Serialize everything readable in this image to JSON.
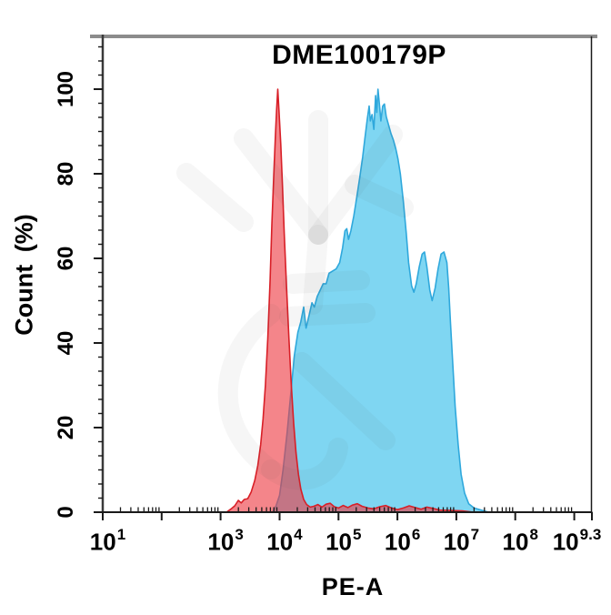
{
  "title": "DME100179P",
  "axes": {
    "y": {
      "label": "Count (%)",
      "ticks": [
        {
          "value": 0,
          "label": "0"
        },
        {
          "value": 20,
          "label": "20"
        },
        {
          "value": 40,
          "label": "40"
        },
        {
          "value": 60,
          "label": "60"
        },
        {
          "value": 80,
          "label": "80"
        },
        {
          "value": 100,
          "label": "100"
        }
      ],
      "minor_step": 3.3333,
      "max_shown": 113
    },
    "x": {
      "label": "PE-A",
      "scale": "log10",
      "range_log": [
        1,
        9.3
      ],
      "ticks": [
        {
          "log": 1,
          "base": "10",
          "exp": "1"
        },
        {
          "log": 3,
          "base": "10",
          "exp": "3"
        },
        {
          "log": 4,
          "base": "10",
          "exp": "4"
        },
        {
          "log": 5,
          "base": "10",
          "exp": "5"
        },
        {
          "log": 6,
          "base": "10",
          "exp": "6"
        },
        {
          "log": 7,
          "base": "10",
          "exp": "7"
        },
        {
          "log": 8,
          "base": "10",
          "exp": "8"
        },
        {
          "log": 9.3,
          "base": "10",
          "exp": "9.3"
        }
      ],
      "unlabeled_major_decades": [
        2,
        9
      ]
    }
  },
  "colors": {
    "red_fill": "#EE3A42",
    "red_fill_opacity": 0.62,
    "red_stroke": "#D81F27",
    "blue_fill": "#7FD6F2",
    "blue_stroke": "#2FA8DC",
    "axis": "#1A1A1A",
    "frame_top": "#8C8C8C",
    "watermark": "#4A4A4A",
    "watermark_opacity": 0.05
  },
  "chart_data": {
    "type": "area",
    "subtype": "flow-cytometry-histogram-overlay",
    "title": "DME100179P",
    "xlabel": "PE-A",
    "ylabel": "Count (%)",
    "x_scale": "log10",
    "xlim_log": [
      1,
      9.3
    ],
    "ylim": [
      0,
      113
    ],
    "grid": false,
    "legend": "none",
    "series": [
      {
        "name": "isotype-control-red",
        "peak_log10_x": 3.97,
        "peak_percent": 100,
        "points_log_pct": [
          [
            3.1,
            0
          ],
          [
            3.18,
            0.8
          ],
          [
            3.24,
            1.5
          ],
          [
            3.3,
            2.8
          ],
          [
            3.35,
            2.2
          ],
          [
            3.4,
            3.0
          ],
          [
            3.46,
            3.2
          ],
          [
            3.52,
            4.8
          ],
          [
            3.58,
            7.5
          ],
          [
            3.63,
            11
          ],
          [
            3.68,
            16
          ],
          [
            3.72,
            22
          ],
          [
            3.76,
            30
          ],
          [
            3.8,
            41
          ],
          [
            3.84,
            55
          ],
          [
            3.87,
            68
          ],
          [
            3.9,
            79
          ],
          [
            3.93,
            89
          ],
          [
            3.95,
            95
          ],
          [
            3.97,
            100
          ],
          [
            3.99,
            95
          ],
          [
            4.02,
            87
          ],
          [
            4.05,
            77
          ],
          [
            4.08,
            66
          ],
          [
            4.12,
            53
          ],
          [
            4.16,
            41
          ],
          [
            4.2,
            30
          ],
          [
            4.24,
            21
          ],
          [
            4.28,
            14
          ],
          [
            4.32,
            9
          ],
          [
            4.36,
            5.5
          ],
          [
            4.41,
            3
          ],
          [
            4.46,
            1.8
          ],
          [
            4.52,
            1.2
          ],
          [
            4.58,
            1.4
          ],
          [
            4.65,
            1.8
          ],
          [
            4.72,
            1.2
          ],
          [
            4.79,
            1.9
          ],
          [
            4.86,
            2.1
          ],
          [
            4.93,
            1.3
          ],
          [
            5.0,
            1.0
          ],
          [
            5.08,
            1.6
          ],
          [
            5.16,
            1.1
          ],
          [
            5.24,
            1.7
          ],
          [
            5.32,
            2.0
          ],
          [
            5.4,
            1.4
          ],
          [
            5.5,
            1.0
          ],
          [
            5.6,
            0.8
          ],
          [
            5.7,
            1.3
          ],
          [
            5.8,
            1.6
          ],
          [
            5.9,
            1.0
          ],
          [
            6.0,
            0.6
          ],
          [
            6.1,
            1.0
          ],
          [
            6.2,
            1.5
          ],
          [
            6.3,
            1.1
          ],
          [
            6.4,
            0.7
          ],
          [
            6.5,
            1.2
          ],
          [
            6.6,
            0.9
          ],
          [
            6.72,
            0.5
          ],
          [
            6.9,
            0.4
          ],
          [
            7.1,
            0.3
          ],
          [
            7.3,
            0
          ]
        ]
      },
      {
        "name": "stained-sample-blue",
        "peak_log10_x": 5.67,
        "peak_percent": 100,
        "points_log_pct": [
          [
            3.88,
            0
          ],
          [
            3.94,
            1.5
          ],
          [
            4.0,
            4
          ],
          [
            4.06,
            10
          ],
          [
            4.13,
            19
          ],
          [
            4.19,
            28
          ],
          [
            4.25,
            37
          ],
          [
            4.31,
            42.5
          ],
          [
            4.36,
            45
          ],
          [
            4.41,
            48.5
          ],
          [
            4.45,
            43.5
          ],
          [
            4.5,
            46.5
          ],
          [
            4.55,
            49.5
          ],
          [
            4.59,
            48.5
          ],
          [
            4.64,
            51
          ],
          [
            4.69,
            52.5
          ],
          [
            4.74,
            54
          ],
          [
            4.79,
            54
          ],
          [
            4.84,
            56.5
          ],
          [
            4.9,
            57
          ],
          [
            4.96,
            57.5
          ],
          [
            5.02,
            59
          ],
          [
            5.07,
            62.5
          ],
          [
            5.11,
            66.5
          ],
          [
            5.14,
            67
          ],
          [
            5.17,
            64.5
          ],
          [
            5.21,
            66.5
          ],
          [
            5.26,
            70
          ],
          [
            5.31,
            74.5
          ],
          [
            5.36,
            79
          ],
          [
            5.41,
            84
          ],
          [
            5.45,
            88.5
          ],
          [
            5.49,
            93
          ],
          [
            5.52,
            96
          ],
          [
            5.54,
            92.5
          ],
          [
            5.57,
            94
          ],
          [
            5.6,
            90.5
          ],
          [
            5.63,
            98.5
          ],
          [
            5.65,
            94.5
          ],
          [
            5.67,
            100
          ],
          [
            5.7,
            95.5
          ],
          [
            5.72,
            92.5
          ],
          [
            5.75,
            96
          ],
          [
            5.78,
            96.5
          ],
          [
            5.81,
            93.5
          ],
          [
            5.85,
            91.5
          ],
          [
            5.89,
            89.5
          ],
          [
            5.93,
            88
          ],
          [
            5.97,
            86
          ],
          [
            6.01,
            83.5
          ],
          [
            6.05,
            80
          ],
          [
            6.1,
            73.5
          ],
          [
            6.15,
            66
          ],
          [
            6.19,
            59
          ],
          [
            6.24,
            53.5
          ],
          [
            6.28,
            52
          ],
          [
            6.32,
            54
          ],
          [
            6.37,
            58
          ],
          [
            6.42,
            61
          ],
          [
            6.46,
            61.5
          ],
          [
            6.5,
            58
          ],
          [
            6.55,
            52.5
          ],
          [
            6.59,
            50
          ],
          [
            6.64,
            53
          ],
          [
            6.69,
            57.5
          ],
          [
            6.74,
            61
          ],
          [
            6.79,
            61.5
          ],
          [
            6.84,
            59
          ],
          [
            6.87,
            53
          ],
          [
            6.9,
            45
          ],
          [
            6.94,
            35
          ],
          [
            6.98,
            25
          ],
          [
            7.03,
            16
          ],
          [
            7.08,
            9
          ],
          [
            7.14,
            4.5
          ],
          [
            7.21,
            2
          ],
          [
            7.3,
            1
          ],
          [
            7.42,
            0.5
          ],
          [
            7.55,
            0
          ]
        ]
      }
    ]
  }
}
